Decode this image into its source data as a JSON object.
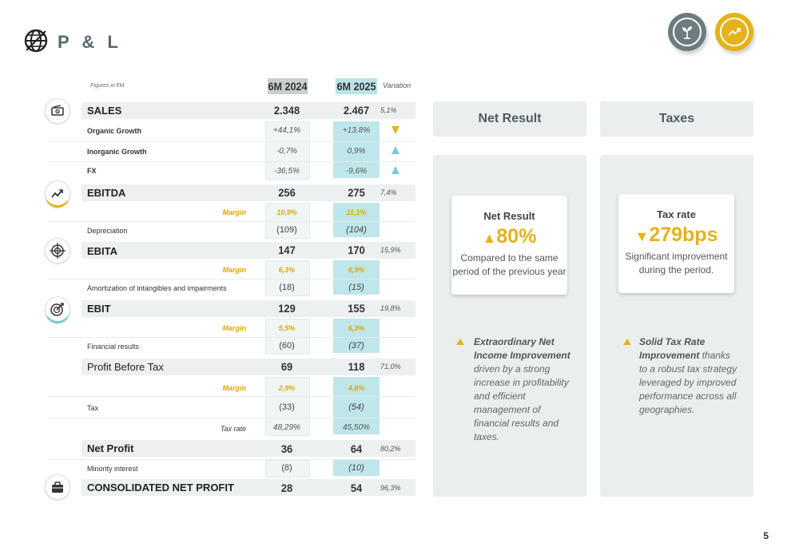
{
  "header": {
    "title": "P & L"
  },
  "table": {
    "figures_note": "Figures in €M",
    "col_a": "6M 2024",
    "col_b": "6M 2025",
    "col_var": "Variation",
    "sales": {
      "label": "SALES",
      "a": "2.348",
      "b": "2.467",
      "var": "5,1%"
    },
    "organic": {
      "label": "Organic Growth",
      "a": "+44,1%",
      "b": "+13,8%"
    },
    "inorganic": {
      "label": "Inorganic Growth",
      "a": "-0,7%",
      "b": "0,9%"
    },
    "fx": {
      "label": "FX",
      "a": "-36,5%",
      "b": "-9,6%"
    },
    "ebitda": {
      "label": "EBITDA",
      "a": "256",
      "b": "275",
      "var": "7,4%"
    },
    "ebitda_margin": {
      "label": "Margin",
      "a": "10,9%",
      "b": "11,1%"
    },
    "depreciation": {
      "label": "Depreciation",
      "a": "(109)",
      "b": "(104)"
    },
    "ebita": {
      "label": "EBITA",
      "a": "147",
      "b": "170",
      "var": "15,9%"
    },
    "ebita_margin": {
      "label": "Margin",
      "a": "6,3%",
      "b": "6,9%"
    },
    "amortization": {
      "label": "Amortization of intangibles and impairments",
      "a": "(18)",
      "b": "(15)"
    },
    "ebit": {
      "label": "EBIT",
      "a": "129",
      "b": "155",
      "var": "19,8%"
    },
    "ebit_margin": {
      "label": "Margin",
      "a": "5,5%",
      "b": "6,3%"
    },
    "financial": {
      "label": "Financial results",
      "a": "(60)",
      "b": "(37)"
    },
    "pbt": {
      "label": "Profit Before Tax",
      "a": "69",
      "b": "118",
      "var": "71,0%"
    },
    "pbt_margin": {
      "label": "Margin",
      "a": "2,9%",
      "b": "4,8%"
    },
    "tax": {
      "label": "Tax",
      "a": "(33)",
      "b": "(54)"
    },
    "taxrate": {
      "label": "Tax rate",
      "a": "48,29%",
      "b": "45,50%"
    },
    "netprofit": {
      "label": "Net Profit",
      "a": "36",
      "b": "64",
      "var": "80,2%"
    },
    "minority": {
      "label": "Minority interest",
      "a": "(8)",
      "b": "(10)"
    },
    "consolidated": {
      "label": "CONSOLIDATED NET PROFIT",
      "a": "28",
      "b": "54",
      "var": "96,3%"
    }
  },
  "net_result": {
    "header": "Net Result",
    "card_title": "Net Result",
    "big": "80%",
    "desc": "Compared to the same period of the previous year",
    "bullet_bold": "Extraordinary Net Income Improvement",
    "bullet_rest": "driven by a strong increase in profitability and efficient management of financial results and taxes."
  },
  "taxes": {
    "header": "Taxes",
    "card_title": "Tax rate",
    "big": "279bps",
    "desc": "Significant improvement during the period.",
    "bullet_bold": "Solid Tax Rate Improvement",
    "bullet_rest": "thanks to a robust tax strategy leveraged by improved performance across all geographies."
  },
  "page_number": "5",
  "colors": {
    "accent_yellow": "#e5b319",
    "teal": "#bfe6ea",
    "grey_panel": "#ebeeee",
    "arrow_teal": "#7ccbd3"
  },
  "icons": [
    "globe-icon",
    "plant-icon",
    "growth-icon",
    "cash-icon",
    "trend-icon",
    "target-icon",
    "dart-icon",
    "briefcase-icon"
  ]
}
